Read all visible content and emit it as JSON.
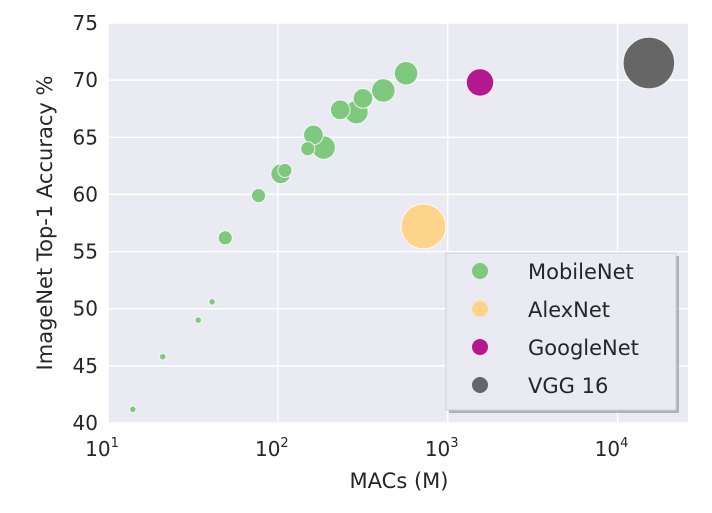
{
  "chart_data": {
    "type": "scatter",
    "title": "",
    "xlabel": "MACs (M)",
    "ylabel": "ImageNet Top-1 Accuracy %",
    "xscale": "log",
    "xlim": [
      10,
      26000
    ],
    "ylim": [
      40,
      75
    ],
    "xticks": [
      {
        "base": "10",
        "exp": "1",
        "value": 10
      },
      {
        "base": "10",
        "exp": "2",
        "value": 100
      },
      {
        "base": "10",
        "exp": "3",
        "value": 1000
      },
      {
        "base": "10",
        "exp": "4",
        "value": 10000
      }
    ],
    "yticks": [
      "40",
      "45",
      "50",
      "55",
      "60",
      "65",
      "70",
      "75"
    ],
    "grid": true,
    "background": "#eaeaf2",
    "legend_position": "lower-right",
    "marker_size_encodes": "parameters (M)",
    "series": [
      {
        "name": "MobileNet",
        "color": "#7fc97f",
        "points": [
          {
            "x": 569,
            "y": 70.6,
            "params": 4.2
          },
          {
            "x": 418,
            "y": 69.1,
            "params": 4.2
          },
          {
            "x": 290,
            "y": 67.2,
            "params": 4.2
          },
          {
            "x": 186,
            "y": 64.1,
            "params": 4.2
          },
          {
            "x": 317,
            "y": 68.4,
            "params": 2.6
          },
          {
            "x": 233,
            "y": 67.4,
            "params": 2.6
          },
          {
            "x": 162,
            "y": 65.2,
            "params": 2.6
          },
          {
            "x": 104,
            "y": 61.8,
            "params": 2.6
          },
          {
            "x": 150,
            "y": 64.0,
            "params": 1.3
          },
          {
            "x": 110,
            "y": 62.1,
            "params": 1.3
          },
          {
            "x": 77,
            "y": 59.9,
            "params": 1.3
          },
          {
            "x": 49,
            "y": 56.2,
            "params": 1.3
          },
          {
            "x": 41,
            "y": 50.6,
            "params": 0.5
          },
          {
            "x": 34,
            "y": 49.0,
            "params": 0.5
          },
          {
            "x": 21,
            "y": 45.8,
            "params": 0.5
          },
          {
            "x": 14,
            "y": 41.2,
            "params": 0.5
          }
        ]
      },
      {
        "name": "AlexNet",
        "color": "#fed38a",
        "points": [
          {
            "x": 720,
            "y": 57.2,
            "params": 60
          }
        ]
      },
      {
        "name": "GoogleNet",
        "color": "#b5178c",
        "points": [
          {
            "x": 1550,
            "y": 69.8,
            "params": 6.8
          }
        ]
      },
      {
        "name": "VGG 16",
        "color": "#666666",
        "points": [
          {
            "x": 15300,
            "y": 71.5,
            "params": 138
          }
        ]
      }
    ]
  }
}
